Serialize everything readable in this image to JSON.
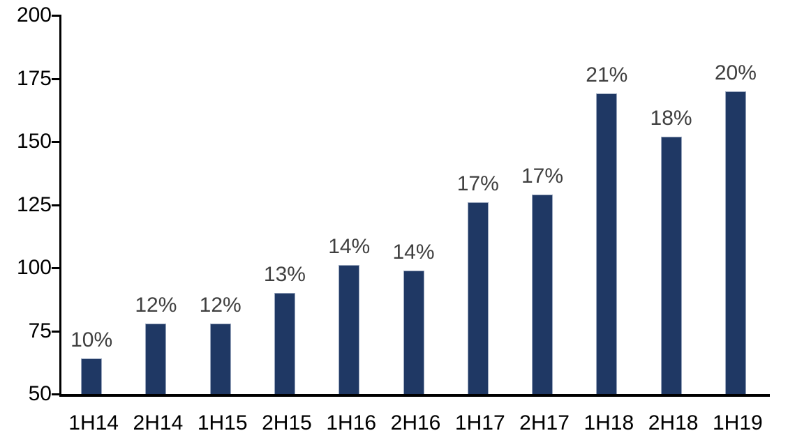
{
  "chart_data": {
    "type": "bar",
    "title": "",
    "xlabel": "",
    "ylabel": "",
    "categories": [
      "1H14",
      "2H14",
      "1H15",
      "2H15",
      "1H16",
      "2H16",
      "1H17",
      "2H17",
      "1H18",
      "2H18",
      "1H19"
    ],
    "values": [
      64,
      78,
      78,
      90,
      101,
      99,
      126,
      129,
      169,
      152,
      170
    ],
    "bar_labels": [
      "10%",
      "12%",
      "12%",
      "13%",
      "14%",
      "14%",
      "17%",
      "17%",
      "21%",
      "18%",
      "20%"
    ],
    "ylim": [
      50,
      200
    ],
    "yticks": [
      50,
      75,
      100,
      125,
      150,
      175,
      200
    ],
    "grid": false,
    "legend": "none",
    "colors": {
      "bar": "#1F3864",
      "bar_border": "#9AA7BE",
      "data_label": "#3F3F3F",
      "axis_label": "#000000",
      "axis_line": "#000000",
      "background": "#FFFFFF"
    }
  }
}
